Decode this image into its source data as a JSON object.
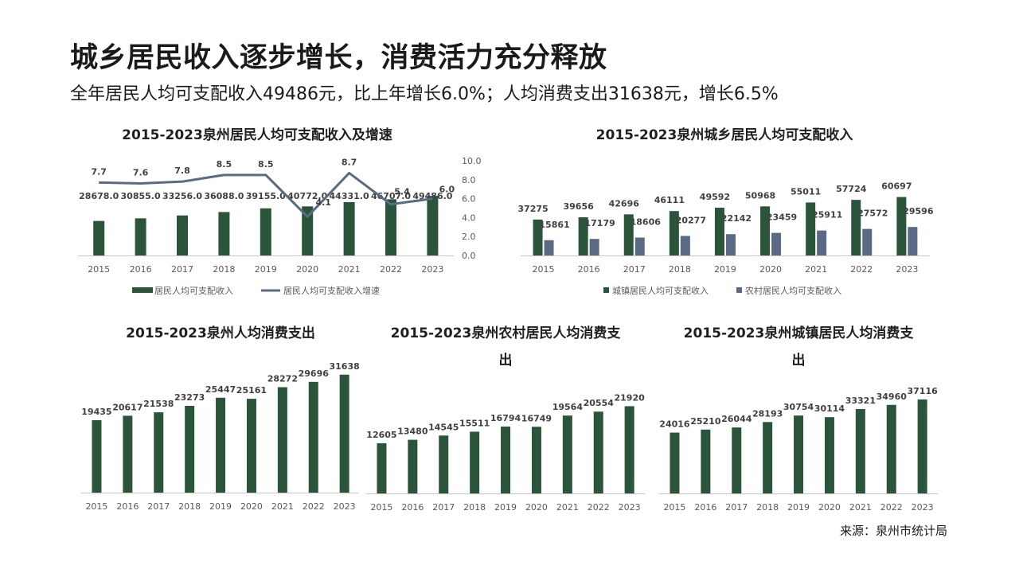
{
  "header": {
    "title": "城乡居民收入逐步增长，消费活力充分释放",
    "subtitle": "全年居民人均可支配收入49486元，比上年增长6.0%；人均消费支出31638元，增长6.5%"
  },
  "colors": {
    "green": "#2b553b",
    "slate": "#5b6a84",
    "axis": "#c8c8c8",
    "text": "#595959"
  },
  "chart_data": [
    {
      "id": "income",
      "type": "bar",
      "title": "2015-2023泉州居民人均可支配收入及增速",
      "categories": [
        "2015",
        "2016",
        "2017",
        "2018",
        "2019",
        "2020",
        "2021",
        "2022",
        "2023"
      ],
      "series": [
        {
          "name": "居民人均可支配收入",
          "kind": "bar",
          "values": [
            28678.0,
            30855.0,
            33256.0,
            36088.0,
            39155.0,
            40772.0,
            44331.0,
            46707.0,
            49486.0
          ],
          "labels": [
            "28678.0",
            "30855.0",
            "33256.0",
            "36088.0",
            "39155.0",
            "40772.0",
            "44331.0",
            "46707.0",
            "49486.0"
          ]
        },
        {
          "name": "居民人均可支配收入增速",
          "kind": "line",
          "axis": "right",
          "values": [
            7.7,
            7.6,
            7.8,
            8.5,
            8.5,
            4.1,
            8.7,
            5.4,
            6.0
          ],
          "labels": [
            "7.7",
            "7.6",
            "7.8",
            "8.5",
            "8.5",
            "4.1",
            "8.7",
            "5.4",
            "6.0"
          ]
        }
      ],
      "ylim": [
        0,
        80000
      ],
      "y2lim": [
        0,
        10
      ],
      "y2ticks": [
        "0.0",
        "2.0",
        "4.0",
        "6.0",
        "8.0",
        "10.0"
      ],
      "legend": "bottom"
    },
    {
      "id": "urban_rural",
      "type": "bar",
      "title": "2015-2023泉州城乡居民人均可支配收入",
      "categories": [
        "2015",
        "2016",
        "2017",
        "2018",
        "2019",
        "2020",
        "2021",
        "2022",
        "2023"
      ],
      "series": [
        {
          "name": "城镇居民人均可支配收入",
          "kind": "bar",
          "values": [
            37275,
            39656,
            42696,
            46111,
            49592,
            50968,
            55011,
            57724,
            60697
          ],
          "labels": [
            "37275",
            "39656",
            "42696",
            "46111",
            "49592",
            "50968",
            "55011",
            "57724",
            "60697"
          ]
        },
        {
          "name": "农村居民人均可支配收入",
          "kind": "bar",
          "values": [
            15861,
            17179,
            18606,
            20277,
            22142,
            23459,
            25911,
            27572,
            29596
          ],
          "labels": [
            "15861",
            "17179",
            "18606",
            "20277",
            "22142",
            "23459",
            "25911",
            "27572",
            "29596"
          ]
        }
      ],
      "ylim": [
        0,
        100000
      ],
      "legend": "bottom"
    },
    {
      "id": "consumption",
      "type": "bar",
      "title": "2015-2023泉州人均消费支出",
      "categories": [
        "2015",
        "2016",
        "2017",
        "2018",
        "2019",
        "2020",
        "2021",
        "2022",
        "2023"
      ],
      "series": [
        {
          "name": "人均消费支出",
          "kind": "bar",
          "values": [
            19435,
            20617,
            21538,
            23273,
            25447,
            25161,
            28272,
            29696,
            31638
          ],
          "labels": [
            "19435",
            "20617",
            "21538",
            "23273",
            "25447",
            "25161",
            "28272",
            "29696",
            "31638"
          ]
        }
      ],
      "ylim": [
        0,
        35000
      ]
    },
    {
      "id": "rural_consumption",
      "type": "bar",
      "title": "2015-2023泉州农村居民人均消费支出",
      "categories": [
        "2015",
        "2016",
        "2017",
        "2018",
        "2019",
        "2020",
        "2021",
        "2022",
        "2023"
      ],
      "series": [
        {
          "name": "农村居民人均消费支出",
          "kind": "bar",
          "values": [
            12605,
            13480,
            14545,
            15511,
            16794,
            16749,
            19564,
            20554,
            21920
          ],
          "labels": [
            "12605",
            "13480",
            "14545",
            "15511",
            "16794",
            "16749",
            "19564",
            "20554",
            "21920"
          ]
        }
      ],
      "ylim": [
        0,
        28000
      ]
    },
    {
      "id": "urban_consumption",
      "type": "bar",
      "title": "2015-2023泉州城镇居民人均消费支出",
      "categories": [
        "2015",
        "2016",
        "2017",
        "2018",
        "2019",
        "2020",
        "2021",
        "2022",
        "2023"
      ],
      "series": [
        {
          "name": "城镇居民人均消费支出",
          "kind": "bar",
          "values": [
            24016,
            25210,
            26044,
            28193,
            30754,
            30114,
            33321,
            34960,
            37116
          ],
          "labels": [
            "24016",
            "25210",
            "26044",
            "28193",
            "30754",
            "30114",
            "33321",
            "34960",
            "37116"
          ]
        }
      ],
      "ylim": [
        0,
        44000
      ]
    }
  ],
  "footer": {
    "source": "来源：泉州市统计局"
  }
}
